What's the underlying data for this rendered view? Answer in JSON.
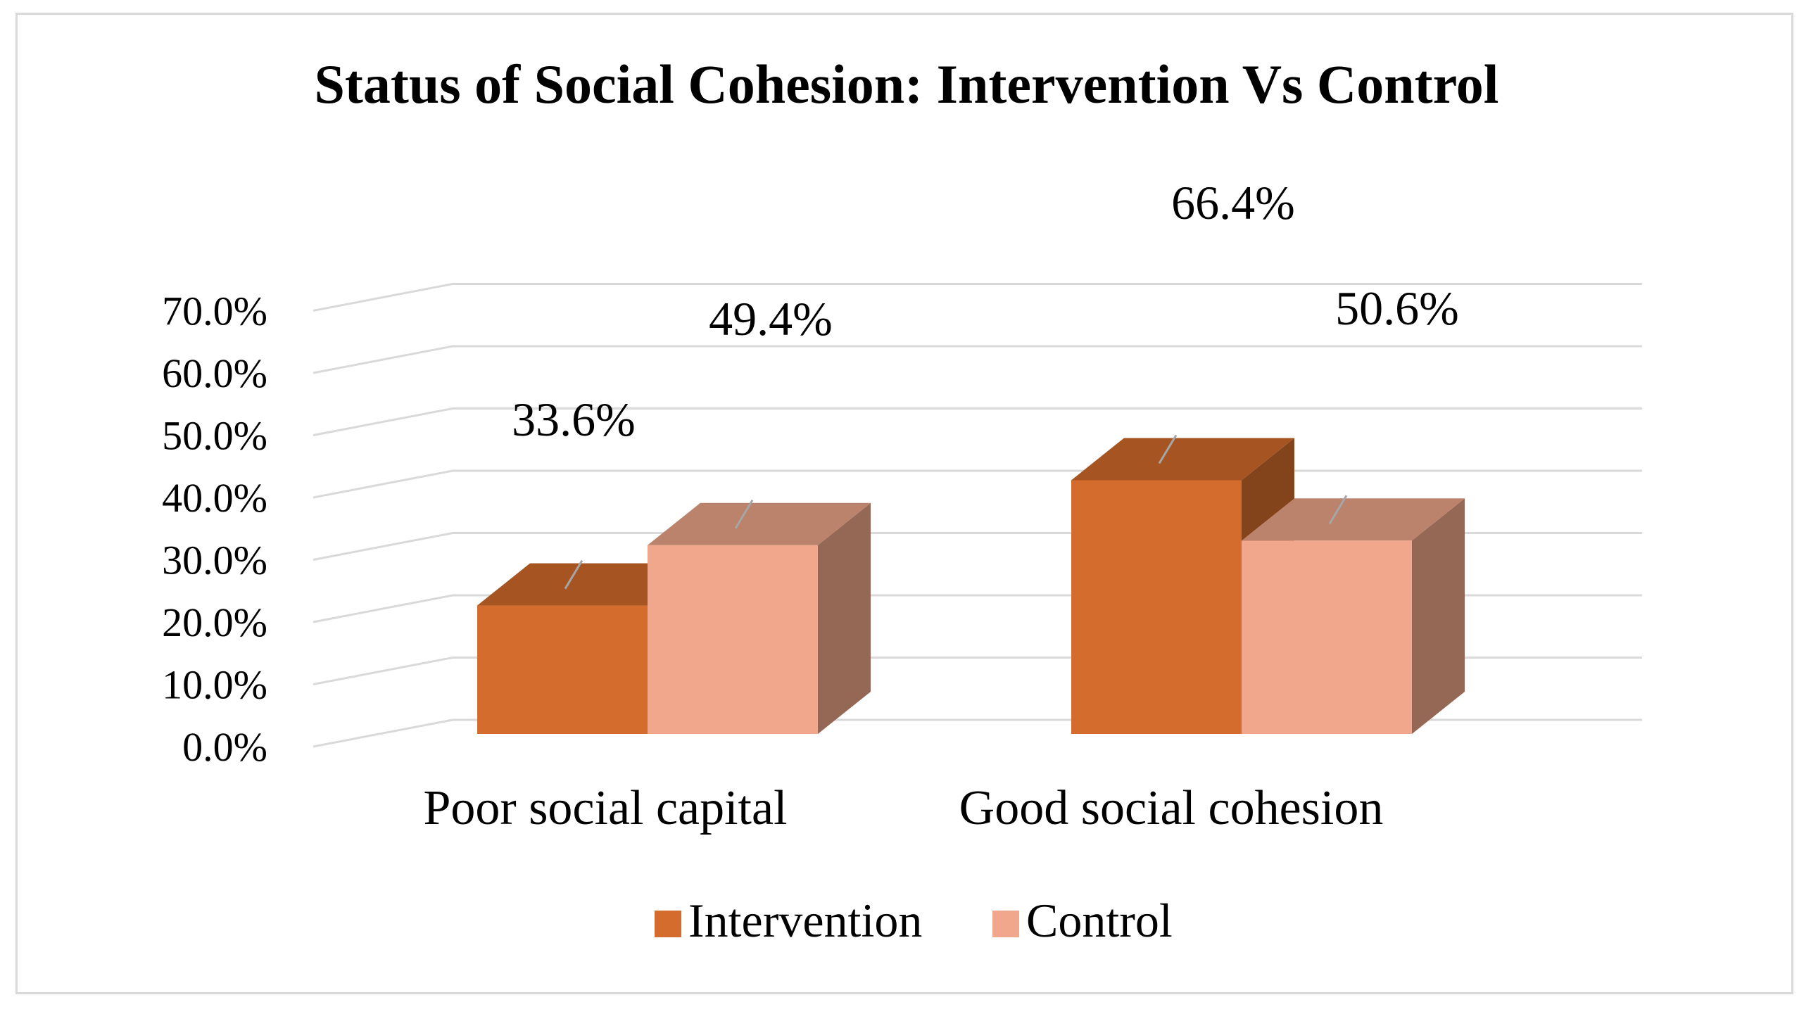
{
  "chart_data": {
    "type": "bar",
    "title": "Status of Social Cohesion: Intervention Vs Control",
    "categories": [
      "Poor social capital",
      "Good social cohesion"
    ],
    "series": [
      {
        "name": "Intervention",
        "values": [
          33.6,
          66.4
        ],
        "labels": [
          "33.6%",
          "66.4%"
        ],
        "color": "#D36C2C"
      },
      {
        "name": "Control",
        "values": [
          49.4,
          50.6
        ],
        "labels": [
          "49.4%",
          "50.6%"
        ],
        "color": "#F0A78B"
      }
    ],
    "y_ticks": [
      "0.0%",
      "10.0%",
      "20.0%",
      "30.0%",
      "40.0%",
      "50.0%",
      "60.0%",
      "70.0%"
    ],
    "ylim": [
      0,
      70
    ],
    "xlabel": "",
    "ylabel": "",
    "legend_position": "bottom",
    "grid": true,
    "style_3d": true
  }
}
